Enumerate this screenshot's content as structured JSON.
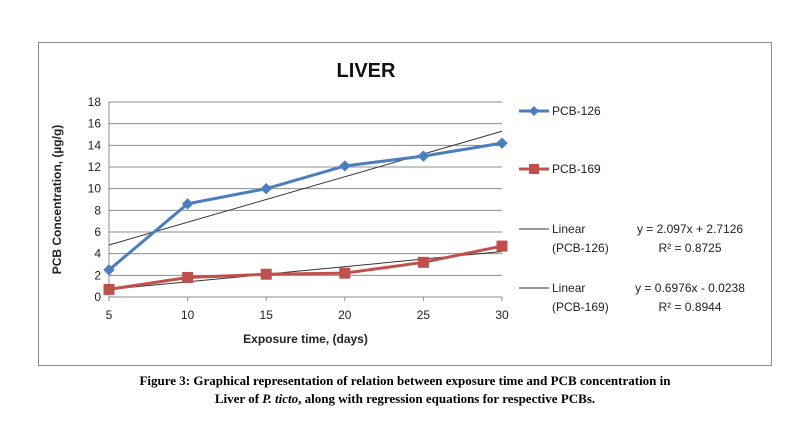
{
  "caption": {
    "line1": "Figure 3: Graphical representation of relation between exposure time and PCB concentration in",
    "line2_prefix": "Liver of ",
    "line2_species": "P. ticto",
    "line2_suffix": ", along with regression equations for respective PCBs."
  },
  "colors": {
    "pcb126": "#4a7ebf",
    "pcb169": "#c0504d",
    "trend": "#333333",
    "grid": "#8c8c8c"
  },
  "chart_data": {
    "type": "line",
    "title": "LIVER",
    "xlabel": "Exposure time, (days)",
    "ylabel": "PCB Concentration, (µg/g)",
    "x": [
      5,
      10,
      15,
      20,
      25,
      30
    ],
    "xlim": [
      5,
      30
    ],
    "ylim": [
      0,
      18
    ],
    "yticks": [
      0,
      2,
      4,
      6,
      8,
      10,
      12,
      14,
      16,
      18
    ],
    "grid": true,
    "legend_position": "right",
    "series": [
      {
        "name": "PCB-126",
        "marker": "diamond",
        "values": [
          2.5,
          8.6,
          10.0,
          12.1,
          13.0,
          14.2
        ]
      },
      {
        "name": "PCB-169",
        "marker": "square",
        "values": [
          0.7,
          1.8,
          2.1,
          2.2,
          3.2,
          4.7
        ]
      }
    ],
    "trendlines": [
      {
        "label_line1": "Linear",
        "label_line2": "(PCB-126)",
        "equation": "y = 2.097x + 2.7126",
        "r2": "R² = 0.8725",
        "start": [
          5,
          4.8
        ],
        "end": [
          30,
          15.3
        ]
      },
      {
        "label_line1": "Linear",
        "label_line2": "(PCB-169)",
        "equation": "y = 0.6976x - 0.0238",
        "r2": "R² = 0.8944",
        "start": [
          5,
          0.7
        ],
        "end": [
          30,
          4.2
        ]
      }
    ]
  }
}
